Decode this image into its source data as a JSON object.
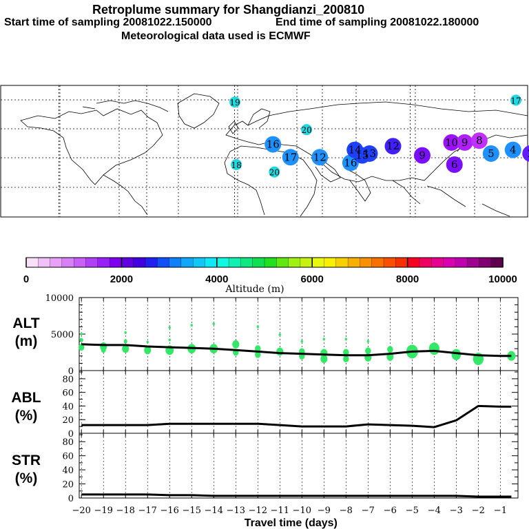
{
  "header": {
    "title": "Retroplume summary for Shangdianzi_200810",
    "start_time": "Start time of sampling 20081022.150000",
    "end_time": "End time of sampling 20081022.180000",
    "meteo": "Meteorological data used is ECMWF"
  },
  "map": {
    "labels": [
      {
        "text": "19",
        "lon": -20,
        "lat": 81,
        "color": "#22d8e0"
      },
      {
        "text": "17",
        "lon": 172,
        "lat": 82,
        "color": "#22d8e0"
      },
      {
        "text": "20",
        "lon": 29,
        "lat": 66,
        "color": "#22d8e0"
      },
      {
        "text": "16",
        "lon": 6,
        "lat": 58,
        "color": "#1e90ff"
      },
      {
        "text": "17",
        "lon": 18,
        "lat": 51,
        "color": "#1e90ff"
      },
      {
        "text": "18",
        "lon": -19,
        "lat": 47,
        "color": "#22d8e0"
      },
      {
        "text": "20",
        "lon": 7,
        "lat": 43,
        "color": "#22d8e0"
      },
      {
        "text": "12",
        "lon": 38,
        "lat": 51,
        "color": "#1e90ff"
      },
      {
        "text": "16",
        "lon": 59,
        "lat": 48,
        "color": "#1e90ff"
      },
      {
        "text": "15",
        "lon": 67,
        "lat": 52,
        "color": "#2040ff"
      },
      {
        "text": "14",
        "lon": 62,
        "lat": 55,
        "color": "#2040ff"
      },
      {
        "text": "13",
        "lon": 72,
        "lat": 53,
        "color": "#2040ff"
      },
      {
        "text": "12",
        "lon": 88,
        "lat": 57,
        "color": "#4020ff"
      },
      {
        "text": "9",
        "lon": 108,
        "lat": 52,
        "color": "#7a10ff"
      },
      {
        "text": "10",
        "lon": 128,
        "lat": 59,
        "color": "#9a10ff"
      },
      {
        "text": "9",
        "lon": 137,
        "lat": 59,
        "color": "#b020ff"
      },
      {
        "text": "8",
        "lon": 147,
        "lat": 60,
        "color": "#c030ff"
      },
      {
        "text": "6",
        "lon": 130,
        "lat": 47,
        "color": "#7a10ff"
      },
      {
        "text": "5",
        "lon": 155,
        "lat": 53,
        "color": "#1e90ff"
      },
      {
        "text": "4",
        "lon": 170,
        "lat": 55,
        "color": "#1e90ff"
      },
      {
        "text": "2",
        "lon": 182,
        "lat": 53,
        "color": "#6020ff"
      }
    ]
  },
  "colorbar": {
    "ticks": [
      "0",
      "2000",
      "4000",
      "6000",
      "8000",
      "10000"
    ],
    "label": "Altitude (m)",
    "colors": [
      "#f8e0f8",
      "#f0c0f8",
      "#e8a0f8",
      "#d880f8",
      "#c860f8",
      "#b040f8",
      "#9820f8",
      "#8000f0",
      "#6000e0",
      "#4000e0",
      "#2020f0",
      "#1050f8",
      "#1080f8",
      "#10a8f8",
      "#10c8f8",
      "#10e8f8",
      "#10f8e0",
      "#10f0b0",
      "#10e880",
      "#10e050",
      "#20e020",
      "#60e810",
      "#a0f010",
      "#c8f010",
      "#e8f810",
      "#f8f000",
      "#f8d000",
      "#f8b000",
      "#f89000",
      "#f87000",
      "#f85000",
      "#f83000",
      "#f80020",
      "#f00060",
      "#e80090",
      "#d800b0",
      "#c000b0",
      "#a00090",
      "#800070",
      "#600050"
    ]
  },
  "chart_data": [
    {
      "type": "line",
      "name": "ALT",
      "ylabel": "ALT",
      "ylabel_unit": "(m)",
      "ylim": [
        0,
        10000
      ],
      "yticks": [
        "10000",
        "5000",
        "0"
      ],
      "x": [
        -20,
        -19,
        -18,
        -17,
        -16,
        -15,
        -14,
        -13,
        -12,
        -11,
        -10,
        -9,
        -8,
        -7,
        -6,
        -5,
        -4,
        -3,
        -2,
        -1,
        -0.5
      ],
      "values": [
        3600,
        3500,
        3500,
        3300,
        3200,
        3100,
        3000,
        2800,
        2600,
        2400,
        2300,
        2200,
        2100,
        2100,
        2300,
        2600,
        2700,
        2400,
        2100,
        2000,
        2000
      ],
      "plume_points": [
        {
          "x": -20,
          "y": 5000,
          "size": 2
        },
        {
          "x": -20,
          "y": 4200,
          "size": 3
        },
        {
          "x": -20,
          "y": 3200,
          "size": 5
        },
        {
          "x": -19,
          "y": 3300,
          "size": 6
        },
        {
          "x": -19,
          "y": 2800,
          "size": 4
        },
        {
          "x": -18,
          "y": 5200,
          "size": 2
        },
        {
          "x": -18,
          "y": 4000,
          "size": 3
        },
        {
          "x": -18,
          "y": 3000,
          "size": 6
        },
        {
          "x": -17,
          "y": 3900,
          "size": 2
        },
        {
          "x": -17,
          "y": 2800,
          "size": 6
        },
        {
          "x": -16,
          "y": 5900,
          "size": 2
        },
        {
          "x": -16,
          "y": 4200,
          "size": 2
        },
        {
          "x": -16,
          "y": 2800,
          "size": 7
        },
        {
          "x": -15,
          "y": 6200,
          "size": 2
        },
        {
          "x": -15,
          "y": 3000,
          "size": 7
        },
        {
          "x": -14,
          "y": 6400,
          "size": 2
        },
        {
          "x": -14,
          "y": 3000,
          "size": 7
        },
        {
          "x": -13,
          "y": 3600,
          "size": 6
        },
        {
          "x": -13,
          "y": 2500,
          "size": 5
        },
        {
          "x": -12,
          "y": 6000,
          "size": 2
        },
        {
          "x": -12,
          "y": 3000,
          "size": 5
        },
        {
          "x": -12,
          "y": 2200,
          "size": 5
        },
        {
          "x": -11,
          "y": 4900,
          "size": 2
        },
        {
          "x": -11,
          "y": 2600,
          "size": 6
        },
        {
          "x": -10,
          "y": 4000,
          "size": 2
        },
        {
          "x": -10,
          "y": 2600,
          "size": 5
        },
        {
          "x": -10,
          "y": 2000,
          "size": 5
        },
        {
          "x": -9,
          "y": 4300,
          "size": 2
        },
        {
          "x": -9,
          "y": 2400,
          "size": 6
        },
        {
          "x": -9,
          "y": 1600,
          "size": 6
        },
        {
          "x": -8,
          "y": 4300,
          "size": 2
        },
        {
          "x": -8,
          "y": 2500,
          "size": 5
        },
        {
          "x": -8,
          "y": 1600,
          "size": 5
        },
        {
          "x": -7,
          "y": 4000,
          "size": 2
        },
        {
          "x": -7,
          "y": 2700,
          "size": 5
        },
        {
          "x": -7,
          "y": 1800,
          "size": 6
        },
        {
          "x": -6,
          "y": 2900,
          "size": 5
        },
        {
          "x": -6,
          "y": 1900,
          "size": 6
        },
        {
          "x": -5,
          "y": 2600,
          "size": 10
        },
        {
          "x": -4,
          "y": 3000,
          "size": 9
        },
        {
          "x": -3,
          "y": 2200,
          "size": 8
        },
        {
          "x": -2,
          "y": 1600,
          "size": 9
        },
        {
          "x": -0.5,
          "y": 2000,
          "size": 7
        }
      ]
    },
    {
      "type": "line",
      "name": "ABL",
      "ylabel": "ABL",
      "ylabel_unit": "(%)",
      "ylim": [
        0,
        90
      ],
      "yticks": [
        "80",
        "60",
        "40",
        "20",
        "0"
      ],
      "x": [
        -20,
        -19,
        -18,
        -17,
        -16,
        -15,
        -14,
        -13,
        -12,
        -11,
        -10,
        -9,
        -8,
        -7,
        -6,
        -5,
        -4,
        -3,
        -2,
        -1,
        -0.5
      ],
      "values": [
        12,
        12,
        12,
        12,
        14,
        14,
        14,
        14,
        14,
        12,
        10,
        10,
        10,
        13,
        12,
        11,
        9,
        19,
        40,
        39,
        39
      ]
    },
    {
      "type": "line",
      "name": "STR",
      "ylabel": "STR",
      "ylabel_unit": "(%)",
      "ylim": [
        0,
        90
      ],
      "yticks": [
        "80",
        "60",
        "40",
        "20",
        "0"
      ],
      "x": [
        -20,
        -19,
        -18,
        -17,
        -16,
        -15,
        -14,
        -13,
        -12,
        -11,
        -10,
        -9,
        -8,
        -7,
        -6,
        -5,
        -4,
        -3,
        -2,
        -1,
        -0.5
      ],
      "values": [
        5,
        5,
        5,
        5,
        4,
        4,
        3,
        3,
        3,
        3,
        3,
        3,
        3,
        3,
        3,
        3,
        3,
        3,
        2,
        2,
        2
      ],
      "xlabel": "Travel time (days)",
      "xticks": [
        "−20",
        "−19",
        "−18",
        "−17",
        "−16",
        "−15",
        "−14",
        "−13",
        "−12",
        "−11",
        "−10",
        "−9",
        "−8",
        "−7",
        "−6",
        "−5",
        "−4",
        "−3",
        "−2",
        "−1"
      ]
    }
  ]
}
